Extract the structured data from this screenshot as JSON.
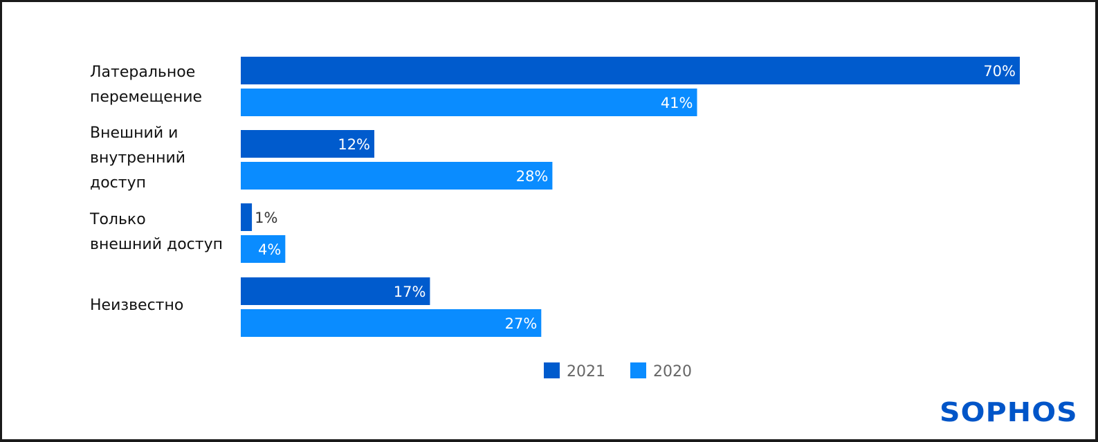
{
  "chart_data": {
    "type": "bar",
    "orientation": "horizontal",
    "categories": [
      "Латеральное перемещение",
      "Внешний и внутренний доступ",
      "Только внешний доступ",
      "Неизвестно"
    ],
    "series": [
      {
        "name": "2021",
        "values": [
          70,
          12,
          1,
          17
        ],
        "color": "#005bcd"
      },
      {
        "name": "2020",
        "values": [
          41,
          28,
          4,
          27
        ],
        "color": "#0a8cff"
      }
    ],
    "value_suffix": "%",
    "xlim": [
      0,
      70
    ],
    "grid": false,
    "legend": "bottom-center",
    "title": "",
    "xlabel": "",
    "ylabel": ""
  },
  "labels": {
    "cat0": "Латеральное\nперемещение",
    "cat1": "Внешний и\nвнутренний\nдоступ",
    "cat2": "Только\nвнешний доступ",
    "cat3": "Неизвестно"
  },
  "legend": {
    "item0": "2021",
    "item1": "2020"
  },
  "logo": {
    "text": "SOPHOS",
    "color": "#0055c8"
  }
}
